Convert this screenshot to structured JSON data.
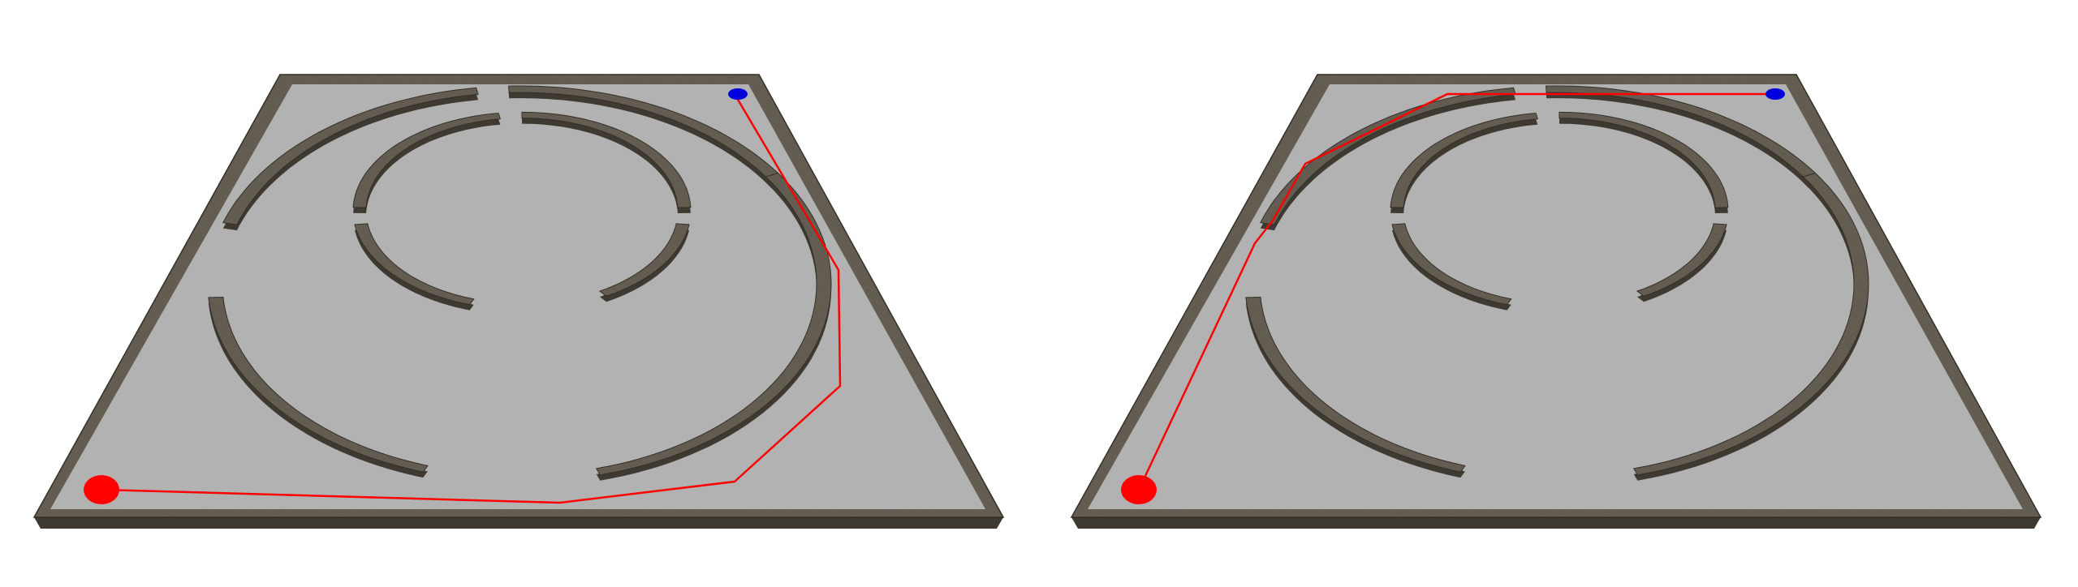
{
  "colors": {
    "background": "#ffffff",
    "floor": "#b2b2b2",
    "wall_top": "#5a5347",
    "wall_side": "#3f3a31",
    "wall_edge": "#2c2822",
    "start_marker": "#ff0000",
    "goal_marker": "#0000dd",
    "path": "#ff0000"
  },
  "scenes": [
    {
      "name": "left-scene",
      "path_route": "outer-ring-clockwise-around-right-and-bottom"
    },
    {
      "name": "right-scene",
      "path_route": "along-top-wall-then-down-left-side"
    }
  ],
  "markers": {
    "start": "red-disc",
    "goal": "blue-disc"
  }
}
